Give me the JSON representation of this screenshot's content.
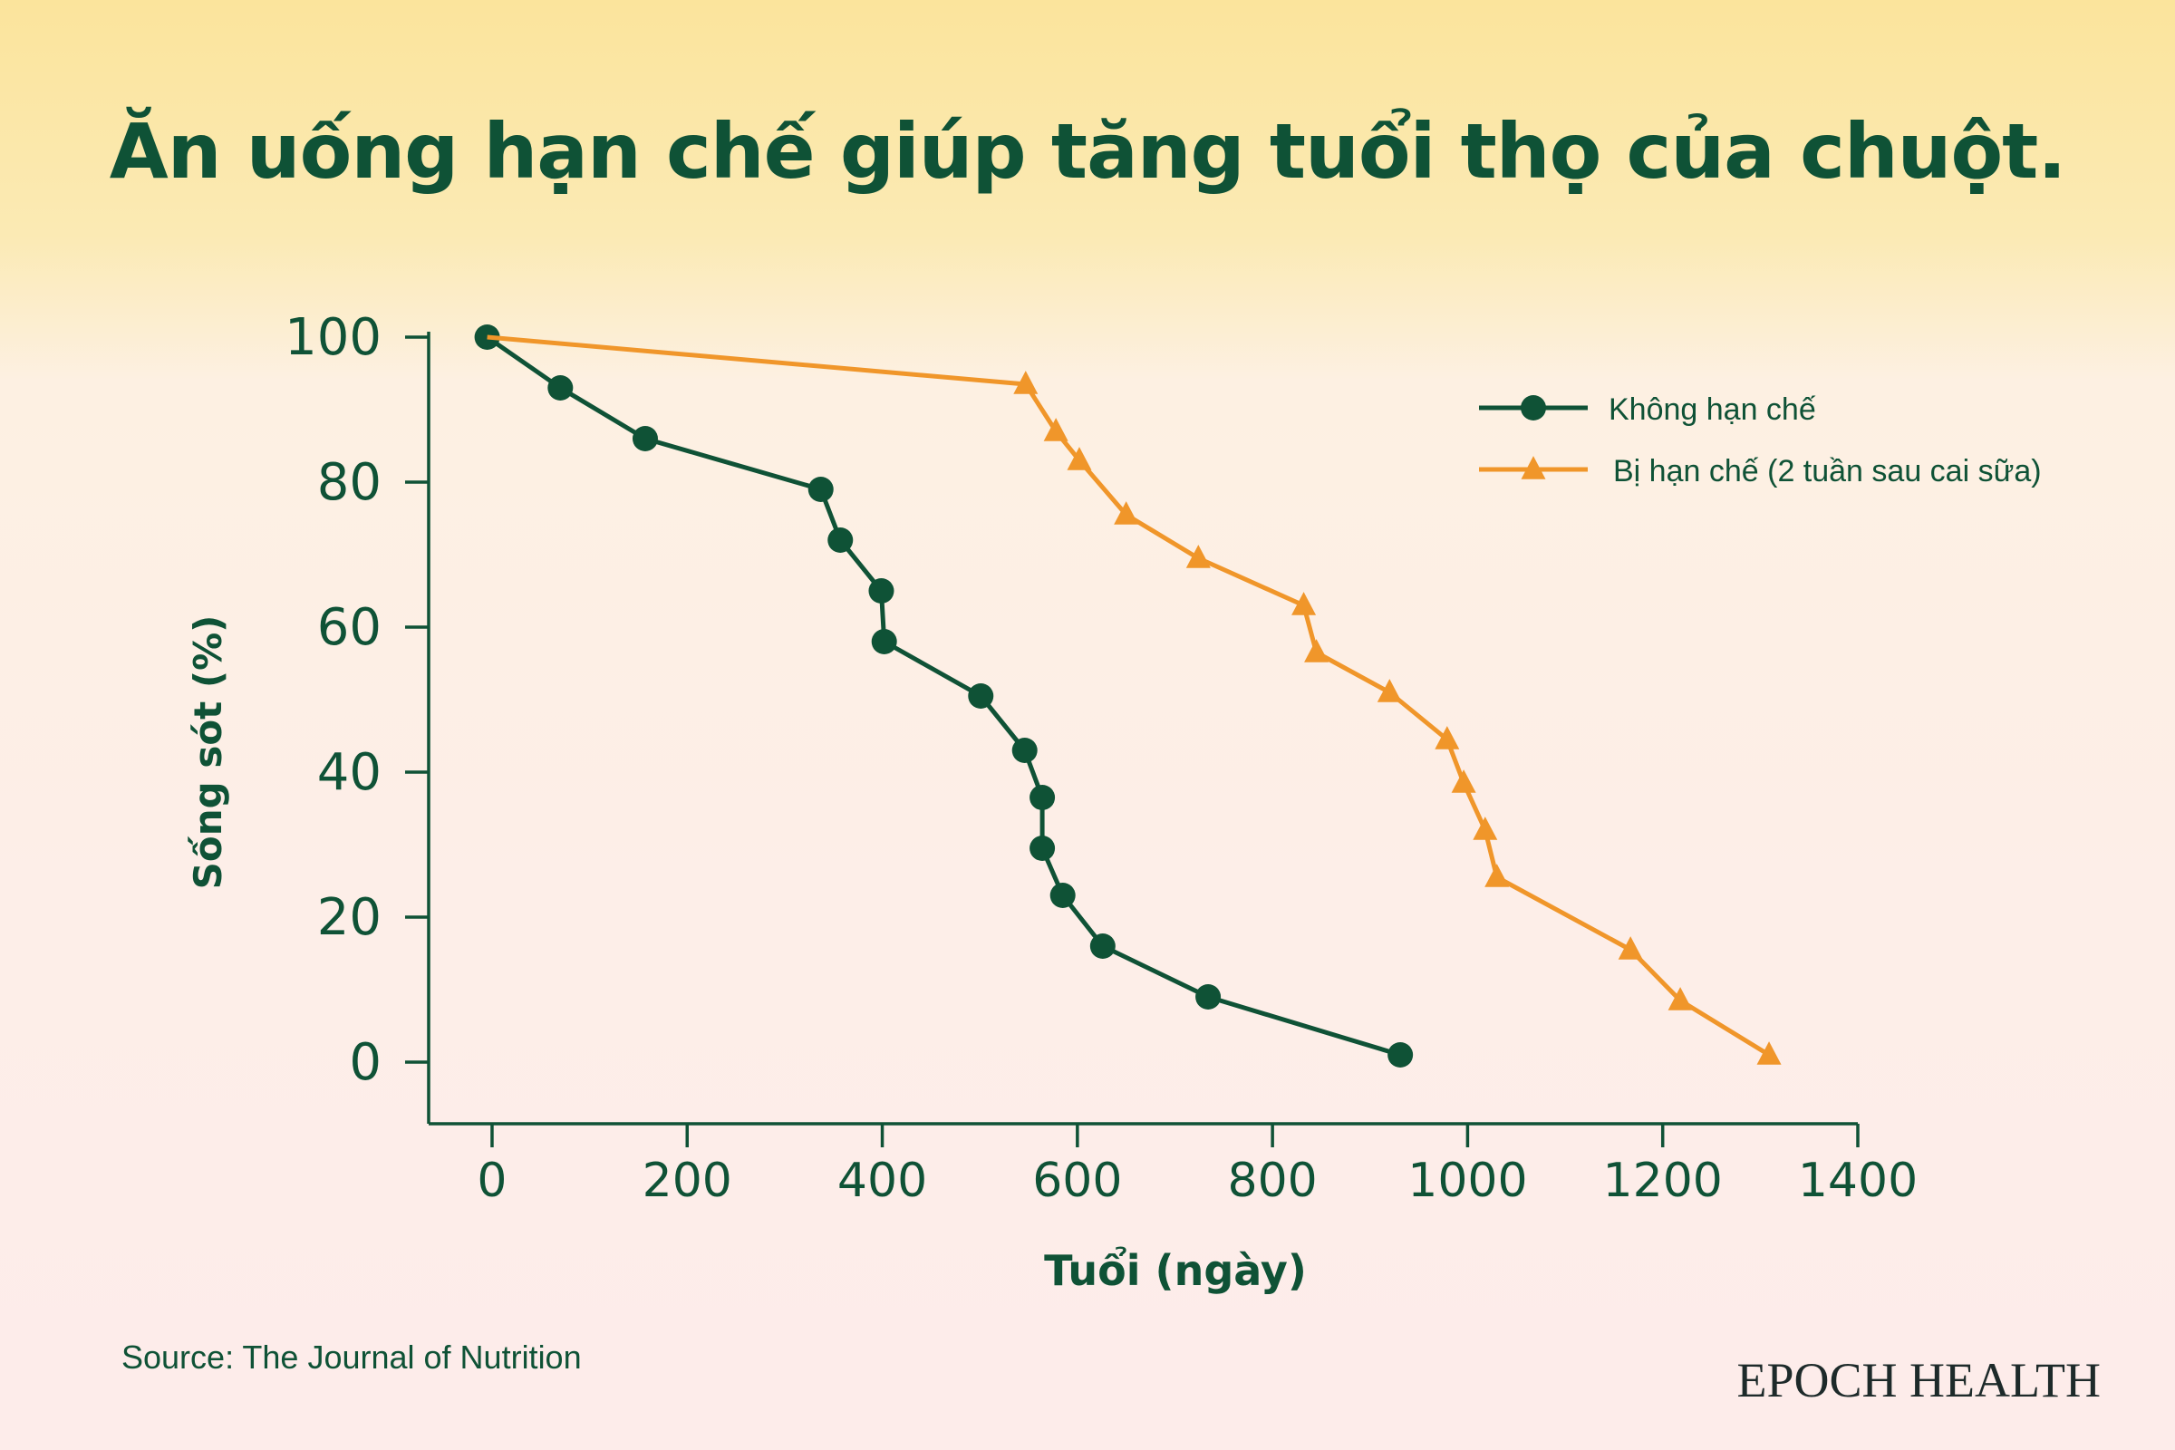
{
  "header": {
    "title": "Ăn uống hạn chế giúp tăng tuổi thọ của chuột."
  },
  "footer": {
    "source": "Source: The Journal of Nutrition",
    "brand": "EPOCH HEALTH"
  },
  "chart_data": {
    "type": "line",
    "title": "Ăn uống hạn chế giúp tăng tuổi thọ của chuột.",
    "xlabel": "Tuổi (ngày)",
    "ylabel": "Sống sót (%)",
    "xlim": [
      -65,
      1400
    ],
    "ylim": [
      -8.5,
      100
    ],
    "xticks": [
      0,
      200,
      400,
      600,
      800,
      1000,
      1200,
      1400
    ],
    "yticks": [
      0,
      20,
      40,
      60,
      80,
      100
    ],
    "grid": false,
    "legend_position": "top-right",
    "series": [
      {
        "name": "Không hạn chế",
        "color": "#0f5236",
        "marker": "circle",
        "x": [
          -5,
          70,
          157,
          337,
          357,
          399,
          402,
          501,
          546,
          564,
          564,
          585,
          626,
          734,
          931
        ],
        "y": [
          100,
          93,
          86,
          79,
          72,
          65,
          58,
          50.5,
          43,
          36.5,
          29.5,
          23,
          16,
          9,
          1
        ]
      },
      {
        "name": "Bị hạn chế (2 tuần sau cai sữa)",
        "color": "#f0962a",
        "marker": "triangle",
        "x": [
          -5,
          547,
          578,
          602,
          650,
          724,
          832,
          845,
          920,
          979,
          996,
          1018,
          1030,
          1167,
          1218,
          1309
        ],
        "y": [
          100,
          93.5,
          87,
          83,
          75.5,
          69.5,
          63,
          56.5,
          51,
          44.5,
          38.5,
          32,
          25.5,
          15.5,
          8.5,
          1
        ]
      }
    ]
  }
}
